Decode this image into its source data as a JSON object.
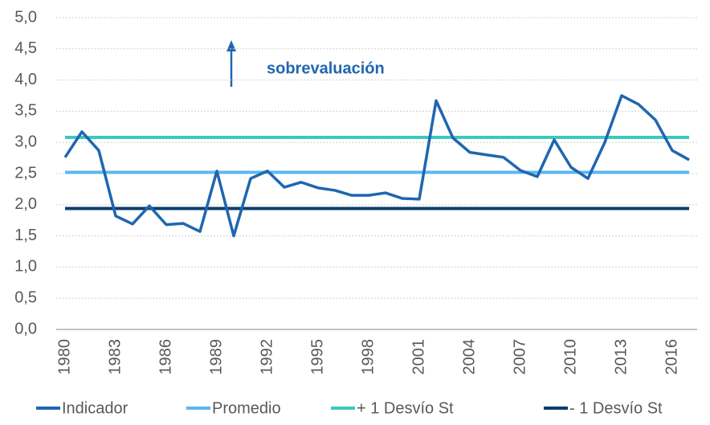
{
  "chart_data": {
    "type": "line",
    "annotations": [
      "sobrevaluación"
    ],
    "categories": [
      "1980",
      null,
      null,
      "1983",
      null,
      null,
      "1986",
      null,
      null,
      "1989",
      null,
      null,
      "1992",
      null,
      null,
      "1995",
      null,
      null,
      "1998",
      null,
      null,
      "2001",
      null,
      null,
      "2004",
      null,
      null,
      "2007",
      null,
      null,
      "2010",
      null,
      null,
      "2013",
      null,
      null,
      "2016",
      null
    ],
    "series": [
      {
        "name": "Indicador",
        "color": "#1f66b0",
        "values": [
          2.76,
          3.17,
          2.87,
          1.82,
          1.69,
          1.98,
          1.68,
          1.7,
          1.57,
          2.54,
          1.5,
          2.42,
          2.54,
          2.28,
          2.36,
          2.27,
          2.23,
          2.15,
          2.15,
          2.19,
          2.1,
          2.09,
          3.67,
          3.07,
          2.84,
          2.8,
          2.76,
          2.55,
          2.45,
          3.04,
          2.6,
          2.42,
          3.0,
          3.75,
          3.61,
          3.36,
          2.87,
          2.72
        ]
      },
      {
        "name": "Promedio",
        "color": "#5bb8ef",
        "values": [
          2.52,
          2.52,
          2.52,
          2.52,
          2.52,
          2.52,
          2.52,
          2.52,
          2.52,
          2.52,
          2.52,
          2.52,
          2.52,
          2.52,
          2.52,
          2.52,
          2.52,
          2.52,
          2.52,
          2.52,
          2.52,
          2.52,
          2.52,
          2.52,
          2.52,
          2.52,
          2.52,
          2.52,
          2.52,
          2.52,
          2.52,
          2.52,
          2.52,
          2.52,
          2.52,
          2.52,
          2.52,
          2.52
        ]
      },
      {
        "name": "+ 1 Desvío St",
        "color": "#3cc8c0",
        "values": [
          3.08,
          3.08,
          3.08,
          3.08,
          3.08,
          3.08,
          3.08,
          3.08,
          3.08,
          3.08,
          3.08,
          3.08,
          3.08,
          3.08,
          3.08,
          3.08,
          3.08,
          3.08,
          3.08,
          3.08,
          3.08,
          3.08,
          3.08,
          3.08,
          3.08,
          3.08,
          3.08,
          3.08,
          3.08,
          3.08,
          3.08,
          3.08,
          3.08,
          3.08,
          3.08,
          3.08,
          3.08,
          3.08
        ]
      },
      {
        "name": "- 1 Desvío St",
        "color": "#0d3d6e",
        "values": [
          1.94,
          1.94,
          1.94,
          1.94,
          1.94,
          1.94,
          1.94,
          1.94,
          1.94,
          1.94,
          1.94,
          1.94,
          1.94,
          1.94,
          1.94,
          1.94,
          1.94,
          1.94,
          1.94,
          1.94,
          1.94,
          1.94,
          1.94,
          1.94,
          1.94,
          1.94,
          1.94,
          1.94,
          1.94,
          1.94,
          1.94,
          1.94,
          1.94,
          1.94,
          1.94,
          1.94,
          1.94,
          1.94
        ]
      }
    ],
    "ylim": [
      0,
      5
    ],
    "yticks": [
      {
        "value": 0,
        "label": "0,0"
      },
      {
        "value": 0.5,
        "label": "0,5"
      },
      {
        "value": 1,
        "label": "1,0"
      },
      {
        "value": 1.5,
        "label": "1,5"
      },
      {
        "value": 2,
        "label": "2,0"
      },
      {
        "value": 2.5,
        "label": "2,5"
      },
      {
        "value": 3,
        "label": "3,0"
      },
      {
        "value": 3.5,
        "label": "3,5"
      },
      {
        "value": 4,
        "label": "4,0"
      },
      {
        "value": 4.5,
        "label": "4,5"
      },
      {
        "value": 5,
        "label": "5,0"
      }
    ],
    "grid": true,
    "legend": "bottom"
  }
}
